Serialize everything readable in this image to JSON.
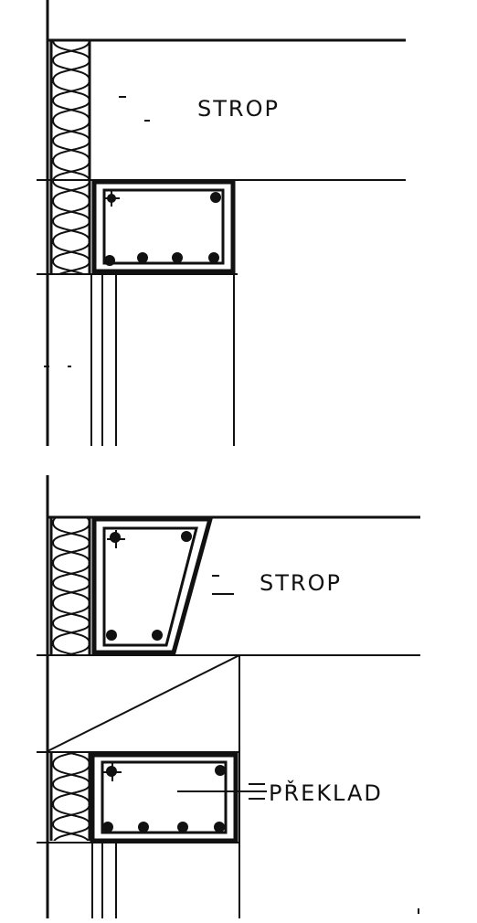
{
  "labels": {
    "top_slab": "STROP",
    "bottom_slab": "STROP",
    "lintel": "PŘEKLAD"
  }
}
